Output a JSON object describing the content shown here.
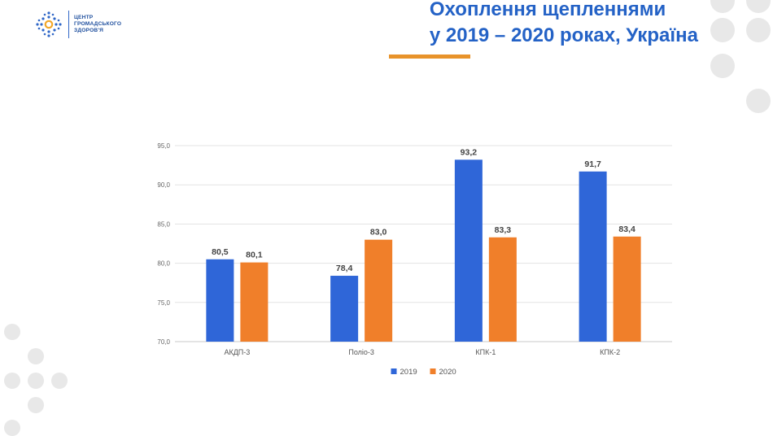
{
  "header": {
    "logo_lines": [
      "ЦЕНТР",
      "ГРОМАДСЬКОГО",
      "ЗДОРОВ'Я"
    ],
    "title_lines": [
      "Охоплення щепленнями",
      "у 2019 – 2020 роках, Україна"
    ]
  },
  "colors": {
    "accent_blue": "#2462c6",
    "accent_orange": "#e8932a",
    "series_2019": "#2f66d8",
    "series_2020": "#f07f2a",
    "dot_gray": "#e8e8e8"
  },
  "chart_data": {
    "type": "bar",
    "categories": [
      "АКДП-3",
      "Поліо-3",
      "КПК-1",
      "КПК-2"
    ],
    "series": [
      {
        "name": "2019",
        "values": [
          80.5,
          78.4,
          93.2,
          91.7
        ]
      },
      {
        "name": "2020",
        "values": [
          80.1,
          83.0,
          83.3,
          83.4
        ]
      }
    ],
    "data_labels": [
      [
        "80,5",
        "78,4",
        "93,2",
        "91,7"
      ],
      [
        "80,1",
        "83,0",
        "83,3",
        "83,4"
      ]
    ],
    "y_ticks": [
      "70,0",
      "75,0",
      "80,0",
      "85,0",
      "90,0",
      "95,0"
    ],
    "ylim": [
      70,
      95
    ],
    "legend_position": "bottom",
    "grid": true,
    "title": "",
    "xlabel": "",
    "ylabel": ""
  }
}
